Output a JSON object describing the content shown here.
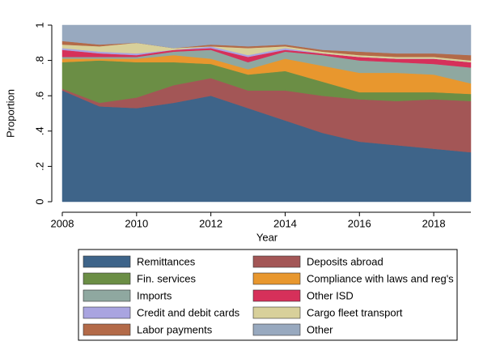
{
  "chart_data": {
    "type": "stacked-area",
    "y_label": "Proportion",
    "x_label": "Year",
    "x": [
      2008,
      2009,
      2010,
      2011,
      2012,
      2013,
      2014,
      2015,
      2016,
      2017,
      2018,
      2019
    ],
    "xlim": [
      2008,
      2019
    ],
    "xticks": [
      2008,
      2010,
      2012,
      2014,
      2016,
      2018
    ],
    "ylim": [
      0,
      1
    ],
    "yticks": [
      0,
      {
        "value": 0.2,
        "label": ".2"
      },
      {
        "value": 0.4,
        "label": ".4"
      },
      {
        "value": 0.6,
        "label": ".6"
      },
      {
        "value": 0.8,
        "label": ".8"
      },
      1
    ],
    "grid": false,
    "legend": "bottom",
    "series": [
      {
        "name": "Remittances",
        "color": "#3e6489",
        "values": [
          0.63,
          0.54,
          0.53,
          0.56,
          0.6,
          0.53,
          0.46,
          0.39,
          0.34,
          0.32,
          0.3,
          0.28
        ]
      },
      {
        "name": "Deposits abroad",
        "color": "#a35656",
        "values": [
          0.01,
          0.02,
          0.06,
          0.1,
          0.1,
          0.1,
          0.17,
          0.21,
          0.24,
          0.25,
          0.28,
          0.29
        ]
      },
      {
        "name": "Fin. services",
        "color": "#6b8e45",
        "values": [
          0.15,
          0.24,
          0.2,
          0.13,
          0.08,
          0.09,
          0.11,
          0.08,
          0.04,
          0.05,
          0.04,
          0.04
        ]
      },
      {
        "name": "Compliance with laws and reg's",
        "color": "#e8972e",
        "values": [
          0.02,
          0.01,
          0.02,
          0.04,
          0.03,
          0.03,
          0.07,
          0.09,
          0.11,
          0.11,
          0.1,
          0.06
        ]
      },
      {
        "name": "Imports",
        "color": "#8fa8a0",
        "values": [
          0.01,
          0.01,
          0.01,
          0.02,
          0.05,
          0.04,
          0.04,
          0.06,
          0.07,
          0.06,
          0.06,
          0.09
        ]
      },
      {
        "name": "Other ISD",
        "color": "#d6305a",
        "values": [
          0.04,
          0.02,
          0.01,
          0.01,
          0.01,
          0.03,
          0.01,
          0.01,
          0.02,
          0.02,
          0.03,
          0.03
        ]
      },
      {
        "name": "Credit and debit cards",
        "color": "#a9a4e0",
        "values": [
          0.01,
          0.01,
          0.01,
          0,
          0.01,
          0.01,
          0.01,
          0,
          0,
          0,
          0,
          0
        ]
      },
      {
        "name": "Cargo fleet transport",
        "color": "#d8d09a",
        "values": [
          0.02,
          0.03,
          0.06,
          0.01,
          0,
          0.04,
          0.01,
          0.01,
          0.01,
          0.01,
          0.01,
          0.01
        ]
      },
      {
        "name": "Labor payments",
        "color": "#b36a48",
        "values": [
          0.02,
          0.01,
          0,
          0,
          0.01,
          0.01,
          0.01,
          0.01,
          0.02,
          0.02,
          0.02,
          0.03
        ]
      },
      {
        "name": "Other",
        "color": "#98a9bf",
        "values": [
          0.09,
          0.11,
          0.1,
          0.13,
          0.11,
          0.12,
          0.11,
          0.14,
          0.15,
          0.16,
          0.16,
          0.17
        ]
      }
    ]
  }
}
